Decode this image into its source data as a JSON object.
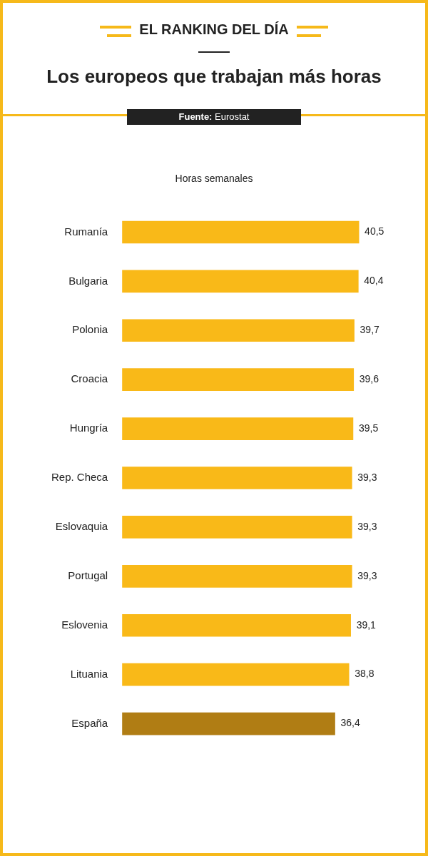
{
  "chart_data": {
    "type": "bar",
    "orientation": "horizontal",
    "title": "Los europeos que trabajan más horas",
    "xlabel": "Horas semanales",
    "annotations": [
      "EL RANKING DEL DÍA",
      "Fuente: Eurostat"
    ],
    "categories": [
      "Rumanía",
      "Bulgaria",
      "Polonia",
      "Croacia",
      "Hungría",
      "Rep. Checa",
      "Eslovaquia",
      "Portugal",
      "Eslovenia",
      "Lituania",
      "España"
    ],
    "values": [
      40.5,
      40.4,
      39.7,
      39.6,
      39.5,
      39.3,
      39.3,
      39.3,
      39.1,
      38.8,
      36.4
    ],
    "value_labels": [
      "40,5",
      "40,4",
      "39,7",
      "39,6",
      "39,5",
      "39,3",
      "39,3",
      "39,3",
      "39,1",
      "38,8",
      "36,4"
    ],
    "colors": [
      "#f9b918",
      "#f9b918",
      "#f9b918",
      "#f9b918",
      "#f9b918",
      "#f9b918",
      "#f9b918",
      "#f9b918",
      "#f9b918",
      "#f9b918",
      "#b07d14"
    ],
    "tick_labels": "y",
    "legend": false
  }
}
